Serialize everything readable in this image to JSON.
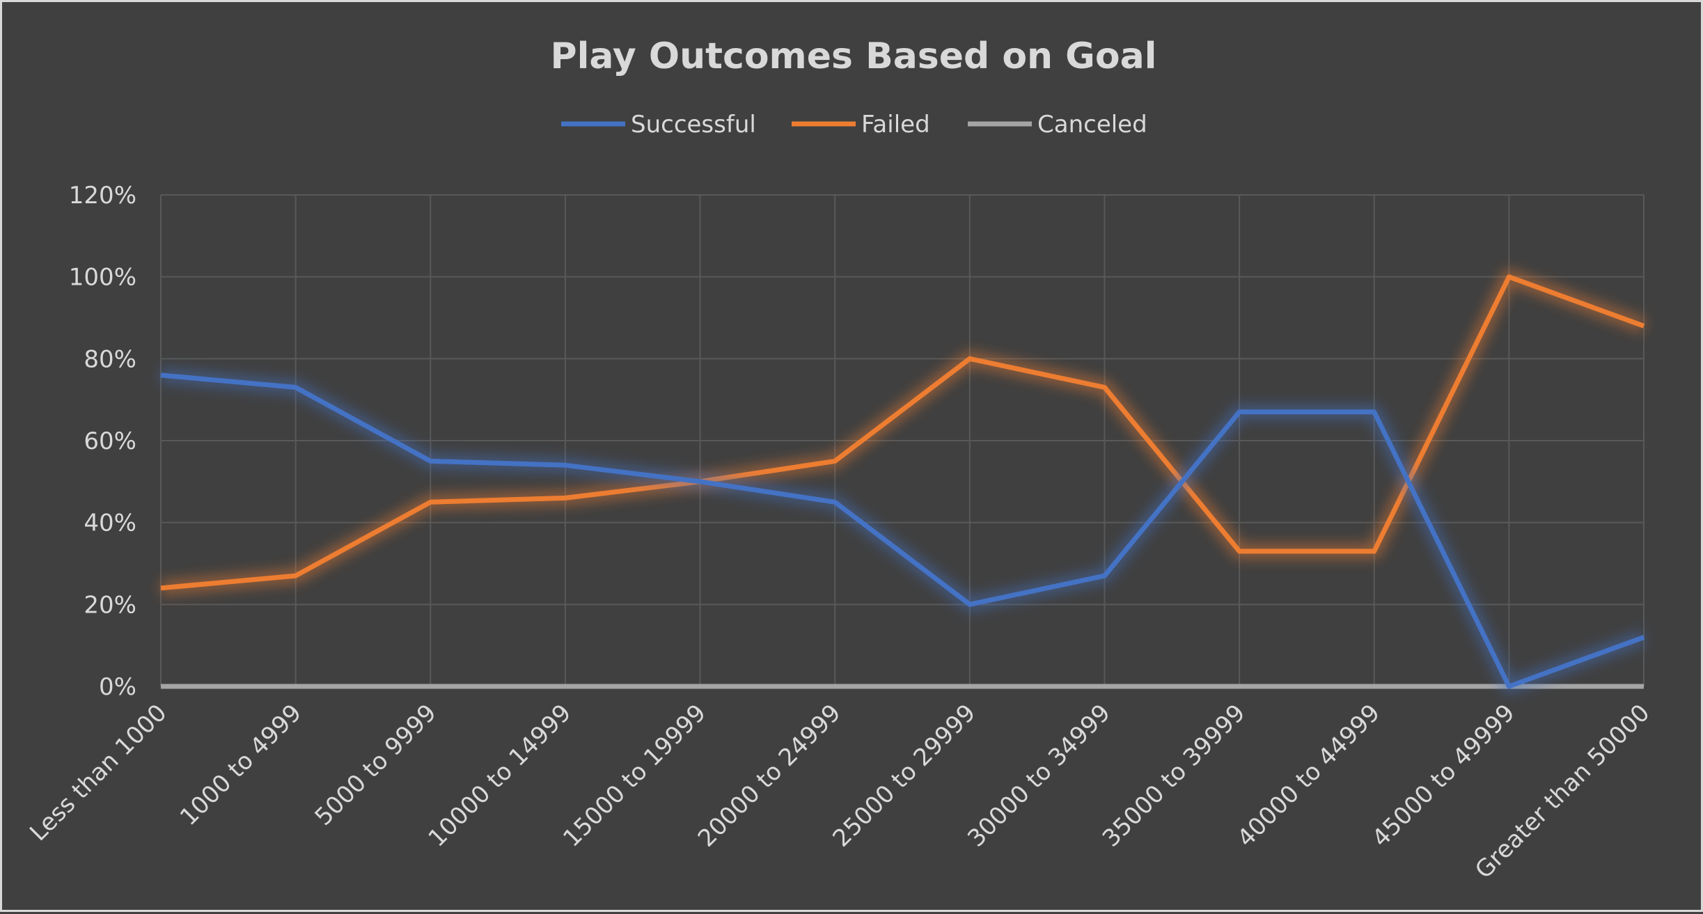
{
  "chart_data": {
    "type": "line",
    "title": "Play Outcomes Based on Goal",
    "xlabel": "",
    "ylabel": "",
    "categories": [
      "Less than 1000",
      "1000 to 4999",
      "5000 to 9999",
      "10000 to 14999",
      "15000 to 19999",
      "20000 to 24999",
      "25000 to 29999",
      "30000 to 34999",
      "35000 to 39999",
      "40000 to 44999",
      "45000 to 49999",
      "Greater than 50000"
    ],
    "y_ticks": [
      "0%",
      "20%",
      "40%",
      "60%",
      "80%",
      "100%",
      "120%"
    ],
    "y_tick_values": [
      0,
      20,
      40,
      60,
      80,
      100,
      120
    ],
    "ylim": [
      0,
      120
    ],
    "grid": true,
    "legend_position": "top",
    "series": [
      {
        "name": "Successful",
        "color": "#4472c4",
        "values": [
          76,
          73,
          55,
          54,
          50,
          45,
          20,
          27,
          67,
          67,
          0,
          12
        ]
      },
      {
        "name": "Failed",
        "color": "#ed7d31",
        "values": [
          24,
          27,
          45,
          46,
          50,
          55,
          80,
          73,
          33,
          33,
          100,
          88
        ]
      },
      {
        "name": "Canceled",
        "color": "#a5a5a5",
        "values": [
          0,
          0,
          0,
          0,
          0,
          0,
          0,
          0,
          0,
          0,
          0,
          0
        ]
      }
    ]
  }
}
